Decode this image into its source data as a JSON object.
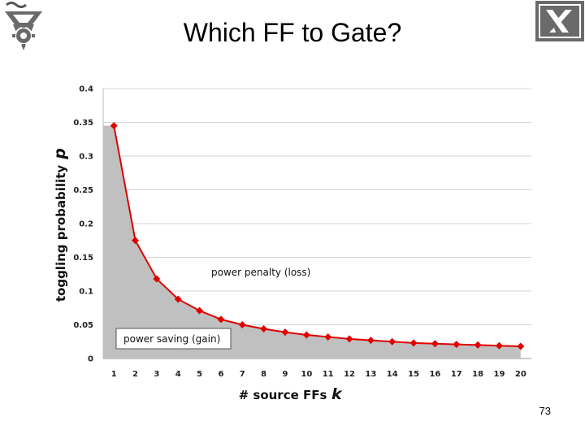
{
  "slide": {
    "title": "Which FF to Gate?",
    "page_number": "73"
  },
  "colors": {
    "series": "#e00000",
    "area": "#c0c0c0",
    "grid": "#d4d4d4",
    "logo": "#6a6a6a"
  },
  "icons": {
    "left_logo": "technion-logo-icon",
    "right_logo": "institute-emblem-icon"
  },
  "chart_data": {
    "type": "area",
    "x": [
      1,
      2,
      3,
      4,
      5,
      6,
      7,
      8,
      9,
      10,
      11,
      12,
      13,
      14,
      15,
      16,
      17,
      18,
      19,
      20
    ],
    "values": [
      0.345,
      0.175,
      0.118,
      0.088,
      0.071,
      0.058,
      0.05,
      0.044,
      0.039,
      0.035,
      0.032,
      0.029,
      0.027,
      0.025,
      0.023,
      0.022,
      0.021,
      0.02,
      0.019,
      0.018
    ],
    "xlabel_text": "# source FFs",
    "xlabel_symbol": "k",
    "ylabel_text": "toggling probability",
    "ylabel_symbol": "p",
    "ylim": [
      0,
      0.4
    ],
    "yticks": [
      "0",
      "0.05",
      "0.1",
      "0.15",
      "0.2",
      "0.25",
      "0.3",
      "0.35",
      "0.4"
    ],
    "xticks": [
      "1",
      "2",
      "3",
      "4",
      "5",
      "6",
      "7",
      "8",
      "9",
      "10",
      "11",
      "12",
      "13",
      "14",
      "15",
      "16",
      "17",
      "18",
      "19",
      "20"
    ],
    "grid": true,
    "annotations": {
      "loss": "power penalty (loss)",
      "gain": "power saving (gain)"
    },
    "marker": "diamond"
  }
}
